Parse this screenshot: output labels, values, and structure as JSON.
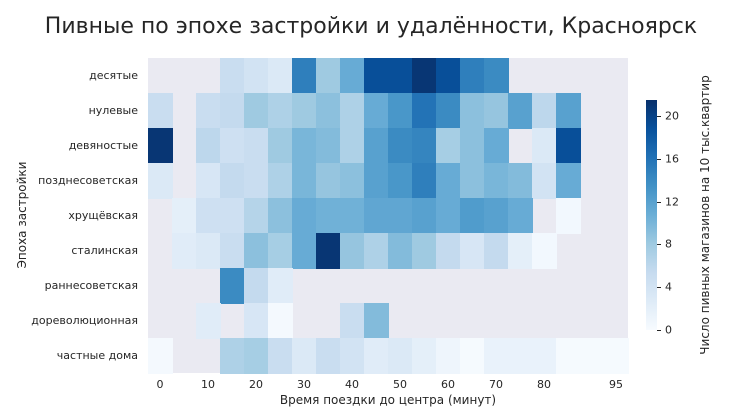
{
  "chart_data": {
    "type": "heatmap",
    "title": "Пивные по эпохе застройки и удалённости, Красноярск",
    "xlabel": "Время поездки до центра (минут)",
    "ylabel": "Эпоха застройки",
    "colorbar_label": "Число пивных магазинов на 10 тыс.квартир",
    "colorbar_ticks": [
      0,
      4,
      8,
      12,
      16,
      20
    ],
    "vmin": 0,
    "vmax": 21.5,
    "colormap": "Blues",
    "x": [
      0,
      5,
      10,
      15,
      20,
      25,
      30,
      35,
      40,
      45,
      50,
      55,
      60,
      65,
      70,
      75,
      80,
      85,
      90,
      95
    ],
    "x_tick_labels": [
      {
        "x": 0,
        "label": "0"
      },
      {
        "x": 10,
        "label": "10"
      },
      {
        "x": 20,
        "label": "20"
      },
      {
        "x": 30,
        "label": "30"
      },
      {
        "x": 40,
        "label": "40"
      },
      {
        "x": 50,
        "label": "50"
      },
      {
        "x": 60,
        "label": "60"
      },
      {
        "x": 70,
        "label": "70"
      },
      {
        "x": 80,
        "label": "80"
      },
      {
        "x": 95,
        "label": "95"
      }
    ],
    "y": [
      "десятые",
      "нулевые",
      "девяностые",
      "позднесоветская",
      "хрущёвская",
      "сталинская",
      "раннесоветская",
      "дореволюционная",
      "частные дома"
    ],
    "values": [
      [
        null,
        null,
        null,
        5,
        4,
        3,
        15,
        8,
        11,
        19,
        19,
        21,
        19,
        15,
        14,
        null,
        null,
        null,
        null,
        null
      ],
      [
        5,
        null,
        5,
        5.5,
        8,
        7,
        8,
        9,
        7,
        11,
        13,
        16,
        14,
        9,
        8.5,
        12,
        6,
        12,
        null,
        null
      ],
      [
        21,
        null,
        6,
        4.5,
        5,
        8,
        10,
        9.5,
        7,
        12,
        14,
        14.5,
        7.5,
        9,
        11,
        null,
        3,
        19,
        null,
        null
      ],
      [
        3,
        null,
        3.5,
        5.5,
        5,
        7,
        10,
        8.5,
        9,
        12,
        13,
        15,
        11,
        9,
        10,
        9.5,
        4,
        11,
        null,
        null
      ],
      [
        null,
        2,
        4.5,
        4.5,
        6.5,
        9,
        11,
        10.5,
        10.5,
        11.5,
        11.5,
        12,
        11,
        12.5,
        12,
        11,
        null,
        0.5,
        null,
        null
      ],
      [
        null,
        2.5,
        3,
        5,
        9,
        7.5,
        11,
        21,
        8.5,
        7,
        9.5,
        8,
        5.5,
        3.5,
        5.5,
        2,
        0.5,
        null,
        null,
        null
      ],
      [
        null,
        null,
        null,
        14,
        5.5,
        2.5,
        null,
        null,
        null,
        null,
        null,
        null,
        null,
        null,
        null,
        null,
        null,
        null,
        null,
        null
      ],
      [
        null,
        null,
        2.5,
        null,
        3.5,
        0.3,
        null,
        null,
        5,
        9.5,
        null,
        null,
        null,
        null,
        null,
        null,
        null,
        null,
        null,
        null
      ],
      [
        0.3,
        null,
        null,
        7,
        7.5,
        5,
        3,
        5,
        4,
        2.5,
        3,
        2,
        1,
        0.2,
        1.5,
        1.5,
        1.5,
        0.2,
        0.2,
        0.2
      ]
    ]
  }
}
